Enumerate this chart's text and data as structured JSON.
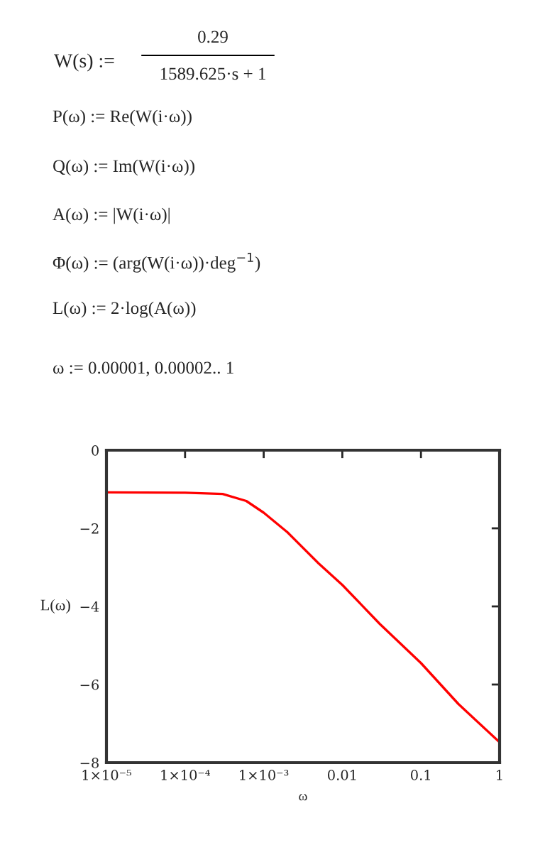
{
  "chart_data": {
    "type": "line",
    "xlabel": "ω",
    "ylabel": "L(ω)",
    "annotations": [
      "W(s) :=",
      "0.29",
      "1589.625·s + 1",
      "P(ω) := Re(W(i·ω))",
      "Q(ω) := Im(W(i·ω))",
      "A(ω) := |W(i·ω)|",
      "Φ(ω) := (arg(W(i·ω))·deg$^{−1}$)",
      "L(ω) := 2·log(A(ω))",
      "ω := 0.00001, 0.00002.. 1"
    ],
    "x": [
      1e-05,
      0.0001,
      0.0003,
      0.0006,
      0.001,
      0.002,
      0.005,
      0.01,
      0.03,
      0.1,
      0.3,
      1
    ],
    "series": [
      {
        "color": "#ff0000",
        "values": [
          -1.08,
          -1.09,
          -1.12,
          -1.3,
          -1.6,
          -2.1,
          -2.9,
          -3.45,
          -4.45,
          -5.45,
          -6.5,
          -7.48
        ]
      }
    ],
    "log": "x",
    "xlim": [
      1e-05,
      1
    ],
    "ylim": [
      -8,
      0
    ],
    "xticks": [
      {
        "value": 1e-05,
        "label": "1×10⁻⁵"
      },
      {
        "value": 0.0001,
        "label": "1×10⁻⁴"
      },
      {
        "value": 0.001,
        "label": "1×10⁻³"
      },
      0.01,
      0.1,
      1
    ],
    "yticks": [
      0,
      {
        "value": -2,
        "label": "−2"
      },
      {
        "value": -4,
        "label": "−4"
      },
      {
        "value": -6,
        "label": "−6"
      },
      {
        "value": -8,
        "label": "−8"
      }
    ],
    "grid": false,
    "line_style": "solid",
    "marker": "none"
  }
}
